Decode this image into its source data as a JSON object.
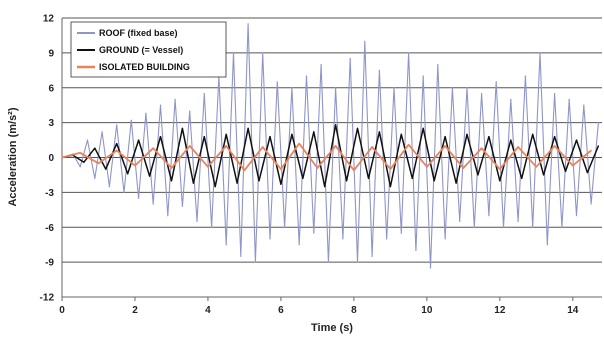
{
  "chart_data": {
    "type": "line",
    "title": "",
    "xlabel": "Time (s)",
    "ylabel": "Acceleration (m/s²)",
    "xlim": [
      0,
      14.8
    ],
    "ylim": [
      -12,
      12
    ],
    "x_ticks": [
      "0",
      "2",
      "4",
      "6",
      "8",
      "10",
      "12",
      "14"
    ],
    "y_ticks": [
      "12",
      "9",
      "6",
      "3",
      "0",
      "-3",
      "-6",
      "-9",
      "-12"
    ],
    "grid": "horizontal",
    "legend_position": "top-left",
    "series": [
      {
        "name": "ROOF (fixed base)",
        "color": "#8f95c8",
        "x": [
          0,
          0.3,
          0.5,
          0.7,
          0.9,
          1.1,
          1.3,
          1.5,
          1.7,
          1.9,
          2.1,
          2.3,
          2.5,
          2.7,
          2.9,
          3.1,
          3.3,
          3.5,
          3.7,
          3.9,
          4.1,
          4.3,
          4.5,
          4.7,
          4.9,
          5.1,
          5.3,
          5.5,
          5.7,
          5.9,
          6.1,
          6.3,
          6.5,
          6.7,
          6.9,
          7.1,
          7.3,
          7.5,
          7.7,
          7.9,
          8.1,
          8.3,
          8.5,
          8.7,
          8.9,
          9.1,
          9.3,
          9.5,
          9.7,
          9.9,
          10.1,
          10.3,
          10.5,
          10.7,
          10.9,
          11.1,
          11.3,
          11.5,
          11.7,
          11.9,
          12.1,
          12.3,
          12.5,
          12.7,
          12.9,
          13.1,
          13.3,
          13.5,
          13.7,
          13.9,
          14.1,
          14.3,
          14.5,
          14.7
        ],
        "y": [
          0,
          0.3,
          -0.8,
          1.5,
          -1.8,
          2.2,
          -2.5,
          2.8,
          -3.0,
          3.2,
          -3.5,
          3.8,
          -4.0,
          4.5,
          -5.0,
          5.0,
          -4.2,
          4.0,
          -5.5,
          5.5,
          -6.0,
          7.0,
          -7.5,
          9.0,
          -8.5,
          11.5,
          -9.0,
          9.0,
          -7.0,
          6.5,
          -6.0,
          6.0,
          -7.5,
          7.0,
          -6.5,
          8.0,
          -9.0,
          6.0,
          -7.0,
          8.5,
          -9.0,
          10.0,
          -8.5,
          7.5,
          -7.0,
          6.0,
          -6.5,
          9.0,
          -8.0,
          7.0,
          -9.5,
          8.0,
          -7.0,
          6.0,
          -5.5,
          6.0,
          -6.0,
          5.5,
          -5.0,
          6.5,
          -6.0,
          5.0,
          -5.5,
          7.0,
          -6.0,
          9.0,
          -7.5,
          5.5,
          -6.0,
          5.0,
          -5.0,
          4.5,
          -4.0,
          3.0
        ]
      },
      {
        "name": "GROUND (= Vessel)",
        "color": "#111111",
        "x": [
          0,
          0.3,
          0.6,
          0.9,
          1.2,
          1.5,
          1.8,
          2.1,
          2.4,
          2.7,
          3.0,
          3.3,
          3.6,
          3.9,
          4.2,
          4.5,
          4.8,
          5.1,
          5.4,
          5.7,
          6.0,
          6.3,
          6.6,
          6.9,
          7.2,
          7.5,
          7.8,
          8.1,
          8.4,
          8.7,
          9.0,
          9.3,
          9.6,
          9.9,
          10.2,
          10.5,
          10.8,
          11.1,
          11.4,
          11.7,
          12.0,
          12.3,
          12.6,
          12.9,
          13.2,
          13.5,
          13.8,
          14.1,
          14.4,
          14.7
        ],
        "y": [
          0,
          0.2,
          -0.4,
          0.8,
          -1.0,
          1.2,
          -1.4,
          1.5,
          -1.6,
          1.8,
          -2.0,
          2.5,
          -2.2,
          1.8,
          -2.5,
          2.0,
          -2.2,
          2.5,
          -2.0,
          1.8,
          -2.3,
          2.0,
          -1.8,
          2.2,
          -2.5,
          2.8,
          -2.0,
          2.5,
          -1.8,
          2.2,
          -2.5,
          2.0,
          -1.8,
          2.5,
          -2.0,
          1.8,
          -2.2,
          2.0,
          -1.5,
          1.8,
          -2.0,
          1.5,
          -1.8,
          2.0,
          -1.5,
          1.8,
          -1.2,
          1.5,
          -1.3,
          1.0
        ]
      },
      {
        "name": "ISOLATED BUILDING",
        "color": "#e8845c",
        "x": [
          0,
          0.5,
          1.0,
          1.5,
          2.0,
          2.5,
          3.0,
          3.5,
          4.0,
          4.5,
          5.0,
          5.5,
          6.0,
          6.5,
          7.0,
          7.5,
          8.0,
          8.5,
          9.0,
          9.5,
          10.0,
          10.5,
          11.0,
          11.5,
          12.0,
          12.5,
          13.0,
          13.5,
          14.0,
          14.5
        ],
        "y": [
          0,
          0.4,
          -0.5,
          0.6,
          -0.7,
          0.8,
          -0.9,
          1.0,
          -0.8,
          1.0,
          -1.1,
          0.9,
          -1.0,
          1.2,
          -0.9,
          1.0,
          -1.1,
          0.9,
          -1.0,
          1.1,
          -0.8,
          1.0,
          -0.9,
          0.8,
          -1.0,
          0.9,
          -0.8,
          1.0,
          -0.7,
          0.6
        ]
      }
    ]
  }
}
